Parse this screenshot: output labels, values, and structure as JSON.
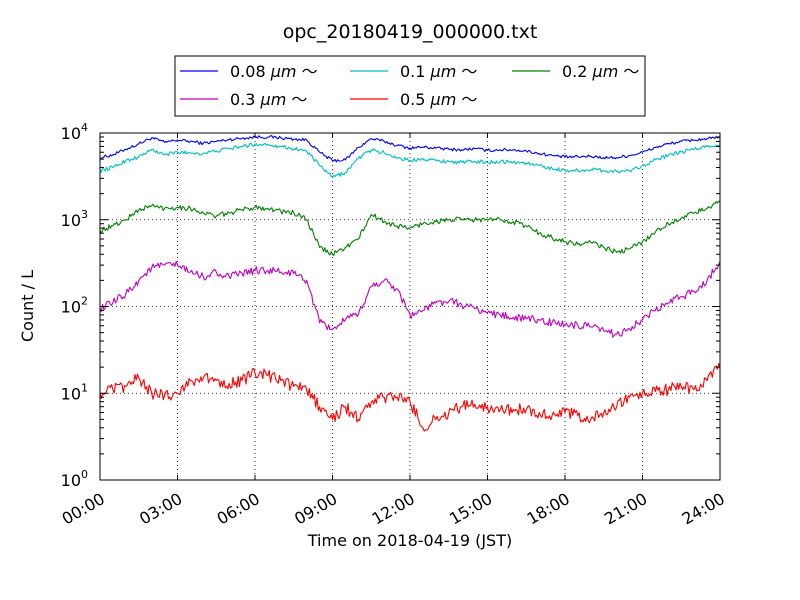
{
  "chart_data": {
    "type": "line",
    "title": "opc_20180419_000000.txt",
    "xlabel": "Time on 2018-04-19 (JST)",
    "ylabel": "Count / L",
    "xlim": [
      0,
      24
    ],
    "x_unit": "hours",
    "y_scale": "log",
    "ylim": [
      1,
      10000
    ],
    "grid": true,
    "legend_position": "top-center",
    "x_ticks": [
      "00:00",
      "03:00",
      "06:00",
      "09:00",
      "12:00",
      "15:00",
      "18:00",
      "21:00",
      "24:00"
    ],
    "y_ticks": [
      {
        "base": "10",
        "exp": "0"
      },
      {
        "base": "10",
        "exp": "1"
      },
      {
        "base": "10",
        "exp": "2"
      },
      {
        "base": "10",
        "exp": "3"
      },
      {
        "base": "10",
        "exp": "4"
      }
    ],
    "series": [
      {
        "name": "0.08 μm ～",
        "legend_size": "0.08 ",
        "legend_unit": "μm",
        "legend_tilde": "～",
        "color": "#0000ff",
        "x": [
          0,
          0.5,
          1,
          1.5,
          2,
          2.5,
          3,
          3.5,
          4,
          4.5,
          5,
          5.5,
          6,
          6.5,
          7,
          7.5,
          8,
          8.5,
          9,
          9.5,
          10,
          10.5,
          11,
          11.5,
          12,
          12.5,
          13,
          13.5,
          14,
          14.5,
          15,
          15.5,
          16,
          16.5,
          17,
          17.5,
          18,
          18.5,
          19,
          19.5,
          20,
          20.5,
          21,
          21.5,
          22,
          22.5,
          23,
          23.5,
          24
        ],
        "y": [
          5200,
          5600,
          6500,
          7500,
          8800,
          7800,
          8300,
          8000,
          7600,
          8000,
          8400,
          8700,
          9000,
          9000,
          8800,
          8500,
          8300,
          6000,
          4800,
          4900,
          6800,
          8600,
          8000,
          7200,
          6700,
          6900,
          6700,
          6500,
          6400,
          6600,
          6300,
          6400,
          6400,
          6200,
          5800,
          5500,
          5300,
          5300,
          5400,
          5200,
          5200,
          5500,
          6000,
          6800,
          7500,
          8000,
          8300,
          8600,
          8800
        ]
      },
      {
        "name": "0.1 μm ～",
        "legend_size": "0.1 ",
        "legend_unit": "μm",
        "legend_tilde": "～",
        "color": "#00bfbf",
        "x": [
          0,
          0.5,
          1,
          1.5,
          2,
          2.5,
          3,
          3.5,
          4,
          4.5,
          5,
          5.5,
          6,
          6.5,
          7,
          7.5,
          8,
          8.5,
          9,
          9.5,
          10,
          10.5,
          11,
          11.5,
          12,
          12.5,
          13,
          13.5,
          14,
          14.5,
          15,
          15.5,
          16,
          16.5,
          17,
          17.5,
          18,
          18.5,
          19,
          19.5,
          20,
          20.5,
          21,
          21.5,
          22,
          22.5,
          23,
          23.5,
          24
        ],
        "y": [
          3700,
          4000,
          4800,
          5300,
          6400,
          5600,
          6000,
          5900,
          5800,
          6200,
          6600,
          7000,
          7400,
          7400,
          7000,
          6600,
          6200,
          4200,
          3100,
          3500,
          5100,
          6400,
          5900,
          5200,
          4800,
          5100,
          4800,
          4700,
          4600,
          4700,
          4600,
          4700,
          4600,
          4500,
          4200,
          3900,
          3700,
          3700,
          3800,
          3700,
          3600,
          3700,
          4200,
          4900,
          5500,
          6000,
          6500,
          7000,
          7400
        ]
      },
      {
        "name": "0.2 μm ～",
        "legend_size": "0.2 ",
        "legend_unit": "μm",
        "legend_tilde": "～",
        "color": "#008000",
        "x": [
          0,
          0.5,
          1,
          1.5,
          2,
          2.5,
          3,
          3.5,
          4,
          4.5,
          5,
          5.5,
          6,
          6.5,
          7,
          7.5,
          8,
          8.5,
          9,
          9.5,
          10,
          10.5,
          11,
          11.5,
          12,
          12.5,
          13,
          13.5,
          14,
          14.5,
          15,
          15.5,
          16,
          16.5,
          17,
          17.5,
          18,
          18.5,
          19,
          19.5,
          20,
          20.5,
          21,
          21.5,
          22,
          22.5,
          23,
          23.5,
          24
        ],
        "y": [
          750,
          850,
          1000,
          1300,
          1450,
          1350,
          1400,
          1350,
          1200,
          1100,
          1200,
          1300,
          1400,
          1350,
          1250,
          1200,
          1000,
          480,
          400,
          480,
          600,
          1150,
          950,
          850,
          800,
          900,
          950,
          1000,
          1000,
          1000,
          1000,
          1000,
          950,
          850,
          700,
          620,
          560,
          520,
          550,
          480,
          420,
          460,
          560,
          720,
          900,
          1050,
          1200,
          1350,
          1600
        ]
      },
      {
        "name": "0.3 μm ～",
        "legend_size": "0.3 ",
        "legend_unit": "μm",
        "legend_tilde": "～",
        "color": "#bf00bf",
        "x": [
          0,
          0.5,
          1,
          1.5,
          2,
          2.5,
          3,
          3.5,
          4,
          4.5,
          5,
          5.5,
          6,
          6.5,
          7,
          7.5,
          8,
          8.5,
          9,
          9.5,
          10,
          10.5,
          11,
          11.5,
          12,
          12.5,
          13,
          13.5,
          14,
          14.5,
          15,
          15.5,
          16,
          16.5,
          17,
          17.5,
          18,
          18.5,
          19,
          19.5,
          20,
          20.5,
          21,
          21.5,
          22,
          22.5,
          23,
          23.5,
          24
        ],
        "y": [
          95,
          110,
          140,
          200,
          280,
          300,
          300,
          250,
          220,
          250,
          220,
          240,
          260,
          260,
          250,
          240,
          200,
          65,
          55,
          70,
          80,
          170,
          200,
          160,
          80,
          90,
          110,
          115,
          105,
          95,
          85,
          80,
          75,
          72,
          70,
          65,
          62,
          60,
          58,
          52,
          48,
          55,
          70,
          90,
          110,
          130,
          150,
          200,
          330
        ]
      },
      {
        "name": "0.5 μm ～",
        "legend_size": "0.5 ",
        "legend_unit": "μm",
        "legend_tilde": "～",
        "color": "#ff0000",
        "x": [
          0,
          0.5,
          1,
          1.5,
          2,
          2.5,
          3,
          3.5,
          4,
          4.5,
          5,
          5.5,
          6,
          6.5,
          7,
          7.5,
          8,
          8.5,
          9,
          9.5,
          10,
          10.5,
          11,
          11.5,
          12,
          12.5,
          13,
          13.5,
          14,
          14.5,
          15,
          15.5,
          16,
          16.5,
          17,
          17.5,
          18,
          18.5,
          19,
          19.5,
          20,
          20.5,
          21,
          21.5,
          22,
          22.5,
          23,
          23.5,
          24
        ],
        "y": [
          10,
          11,
          12,
          15,
          10,
          9.5,
          10,
          14,
          15,
          14,
          13,
          14,
          17,
          16,
          14,
          12,
          11,
          7,
          5,
          7,
          5,
          8,
          9,
          9,
          8,
          4,
          5,
          6,
          7,
          7.5,
          7,
          6.5,
          6.5,
          6.5,
          6,
          5.5,
          6,
          5.5,
          5,
          6,
          7,
          9,
          10,
          10.5,
          11,
          12,
          11,
          14,
          20
        ]
      }
    ]
  }
}
